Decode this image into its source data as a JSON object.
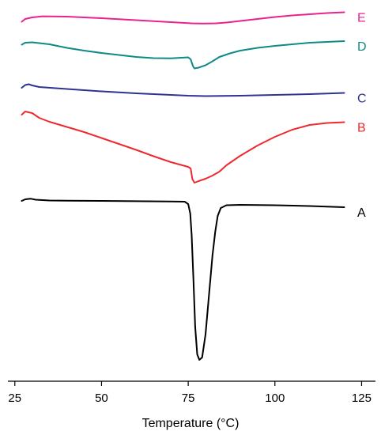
{
  "chart_data": {
    "type": "line",
    "xlabel": "Temperature (°C)",
    "ylabel": "",
    "xlim": [
      23,
      129
    ],
    "x_ticks": [
      25,
      50,
      75,
      100,
      125
    ],
    "x_tick_labels": [
      "25",
      "50",
      "75",
      "100",
      "125"
    ],
    "grid": false,
    "y_axis_visible": false,
    "series": [
      {
        "name": "E",
        "color": "#e8238f",
        "points": [
          [
            27,
            19.5
          ],
          [
            28,
            16
          ],
          [
            30,
            14
          ],
          [
            33,
            12.6
          ],
          [
            40,
            13
          ],
          [
            50,
            15
          ],
          [
            60,
            17.5
          ],
          [
            70,
            20
          ],
          [
            76,
            21.5
          ],
          [
            80,
            21.8
          ],
          [
            83,
            21.5
          ],
          [
            86,
            20.5
          ],
          [
            90,
            18.5
          ],
          [
            95,
            16
          ],
          [
            100,
            13.5
          ],
          [
            105,
            11.5
          ],
          [
            110,
            10
          ],
          [
            115,
            8.5
          ],
          [
            120,
            7.5
          ]
        ]
      },
      {
        "name": "D",
        "color": "#0f8a86",
        "points": [
          [
            27,
            48.5
          ],
          [
            28,
            46
          ],
          [
            30,
            45.5
          ],
          [
            35,
            48
          ],
          [
            40,
            52.5
          ],
          [
            45,
            56
          ],
          [
            50,
            59
          ],
          [
            55,
            61.5
          ],
          [
            60,
            64
          ],
          [
            65,
            65.5
          ],
          [
            70,
            65.8
          ],
          [
            75,
            64.5
          ],
          [
            75.7,
            67
          ],
          [
            76.4,
            76
          ],
          [
            76.8,
            78.5
          ],
          [
            78,
            77.5
          ],
          [
            80,
            74.5
          ],
          [
            82,
            69.5
          ],
          [
            84,
            64
          ],
          [
            87,
            59.5
          ],
          [
            90,
            56
          ],
          [
            95,
            52.5
          ],
          [
            100,
            50
          ],
          [
            105,
            48
          ],
          [
            110,
            46
          ],
          [
            115,
            45
          ],
          [
            120,
            44
          ]
        ]
      },
      {
        "name": "C",
        "color": "#2d3590",
        "points": [
          [
            27,
            103
          ],
          [
            28,
            99.5
          ],
          [
            29,
            98.5
          ],
          [
            30,
            100
          ],
          [
            32,
            102
          ],
          [
            40,
            104.5
          ],
          [
            50,
            107.5
          ],
          [
            60,
            110
          ],
          [
            70,
            112
          ],
          [
            75,
            113
          ],
          [
            80,
            113.5
          ],
          [
            90,
            113
          ],
          [
            100,
            112
          ],
          [
            110,
            111
          ],
          [
            120,
            109.5
          ]
        ]
      },
      {
        "name": "B",
        "color": "#ee2a2e",
        "points": [
          [
            27,
            137
          ],
          [
            28,
            133
          ],
          [
            30,
            135
          ],
          [
            32,
            141
          ],
          [
            35,
            146
          ],
          [
            40,
            152.5
          ],
          [
            45,
            159
          ],
          [
            50,
            166.5
          ],
          [
            55,
            174
          ],
          [
            60,
            181.5
          ],
          [
            65,
            189.5
          ],
          [
            70,
            197
          ],
          [
            75,
            203
          ],
          [
            75.7,
            205
          ],
          [
            76.2,
            218.5
          ],
          [
            76.8,
            223
          ],
          [
            78,
            221
          ],
          [
            80,
            218
          ],
          [
            82,
            214
          ],
          [
            84,
            209
          ],
          [
            86,
            201
          ],
          [
            88,
            195
          ],
          [
            90,
            189
          ],
          [
            95,
            176
          ],
          [
            100,
            165
          ],
          [
            105,
            156
          ],
          [
            110,
            150
          ],
          [
            115,
            147.5
          ],
          [
            120,
            146.5
          ]
        ]
      },
      {
        "name": "A",
        "color": "#000000",
        "points": [
          [
            27,
            246
          ],
          [
            28,
            244
          ],
          [
            29.5,
            243.2
          ],
          [
            31,
            244.5
          ],
          [
            35,
            245.5
          ],
          [
            40,
            245.7
          ],
          [
            50,
            246
          ],
          [
            60,
            246.4
          ],
          [
            70,
            246.8
          ],
          [
            74,
            247
          ],
          [
            75,
            250
          ],
          [
            75.6,
            262
          ],
          [
            76,
            290
          ],
          [
            76.5,
            345
          ],
          [
            77,
            405
          ],
          [
            77.6,
            440
          ],
          [
            78.2,
            447
          ],
          [
            79,
            444
          ],
          [
            80,
            415
          ],
          [
            81,
            365
          ],
          [
            82,
            315
          ],
          [
            82.8,
            285
          ],
          [
            83.5,
            265
          ],
          [
            84.4,
            255
          ],
          [
            86,
            251.5
          ],
          [
            90,
            251
          ],
          [
            100,
            251.5
          ],
          [
            110,
            252.5
          ],
          [
            120,
            254
          ]
        ]
      }
    ]
  }
}
